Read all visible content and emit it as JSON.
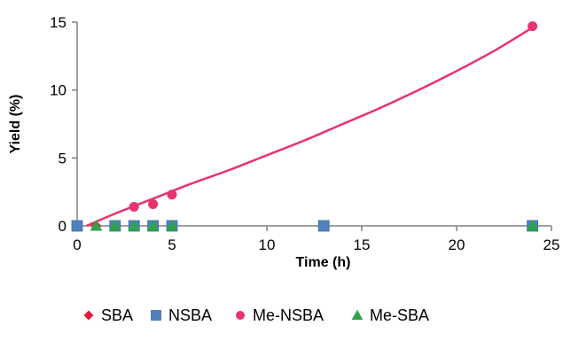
{
  "chart_data": {
    "type": "scatter",
    "title": "",
    "xlabel": "Time (h)",
    "ylabel": "Yield (%)",
    "xlim": [
      0,
      25
    ],
    "ylim": [
      0,
      15
    ],
    "x_ticks": [
      "0",
      "5",
      "10",
      "15",
      "20",
      "25"
    ],
    "y_ticks": [
      "0",
      "5",
      "10",
      "15"
    ],
    "grid": false,
    "legend_position": "bottom",
    "series": [
      {
        "name": "SBA",
        "marker": "diamond",
        "color": "#e01b3c",
        "x": [
          0,
          1,
          2
        ],
        "y": [
          0,
          0,
          0
        ]
      },
      {
        "name": "NSBA",
        "marker": "square",
        "color": "#4f81bd",
        "x": [
          0,
          2,
          3,
          4,
          5,
          13,
          24
        ],
        "y": [
          0,
          0,
          0,
          0,
          0,
          0,
          0
        ]
      },
      {
        "name": "Me-NSBA",
        "marker": "circle",
        "color": "#e8336d",
        "x": [
          0,
          3,
          4,
          5,
          24
        ],
        "y": [
          0,
          1.4,
          1.6,
          2.3,
          14.7
        ],
        "trendline": {
          "type": "polynomial",
          "color": "#e8336d",
          "x": [
            0.5,
            2,
            4,
            6,
            8,
            10,
            12,
            14,
            16,
            18,
            20,
            22,
            24
          ],
          "y": [
            0,
            0.9,
            2.0,
            3.1,
            4.1,
            5.2,
            6.3,
            7.5,
            8.7,
            10.0,
            11.4,
            12.9,
            14.6
          ]
        }
      },
      {
        "name": "Me-SBA",
        "marker": "triangle",
        "color": "#2ea34a",
        "x": [
          1,
          2,
          3,
          4,
          5,
          24
        ],
        "y": [
          0,
          0,
          0,
          0,
          0,
          0
        ]
      }
    ]
  }
}
